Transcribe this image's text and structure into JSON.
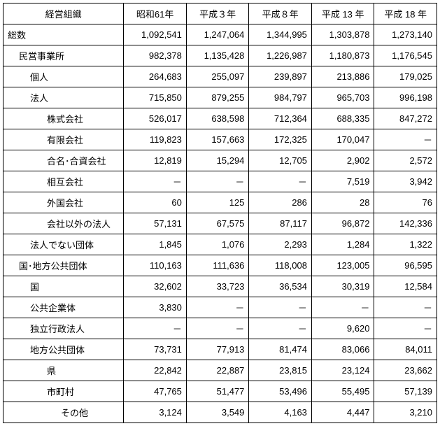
{
  "header": {
    "row_label": "経営組織",
    "columns": [
      "昭和61年",
      "平成３年",
      "平成８年",
      "平成 13 年",
      "平成 18 年"
    ]
  },
  "rows": [
    {
      "label": "総数",
      "indent": 0,
      "values": [
        "1,092,541",
        "1,247,064",
        "1,344,995",
        "1,303,878",
        "1,273,140"
      ]
    },
    {
      "label": "民営事業所",
      "indent": 1,
      "values": [
        "982,378",
        "1,135,428",
        "1,226,987",
        "1,180,873",
        "1,176,545"
      ]
    },
    {
      "label": "個人",
      "indent": 2,
      "values": [
        "264,683",
        "255,097",
        "239,897",
        "213,886",
        "179,025"
      ]
    },
    {
      "label": "法人",
      "indent": 2,
      "values": [
        "715,850",
        "879,255",
        "984,797",
        "965,703",
        "996,198"
      ]
    },
    {
      "label": "株式会社",
      "indent": 3,
      "values": [
        "526,017",
        "638,598",
        "712,364",
        "688,335",
        "847,272"
      ]
    },
    {
      "label": "有限会社",
      "indent": 3,
      "values": [
        "119,823",
        "157,663",
        "172,325",
        "170,047",
        "－"
      ]
    },
    {
      "label": "合名･合資会社",
      "indent": 3,
      "values": [
        "12,819",
        "15,294",
        "12,705",
        "2,902",
        "2,572"
      ]
    },
    {
      "label": "相互会社",
      "indent": 3,
      "values": [
        "－",
        "－",
        "－",
        "7,519",
        "3,942"
      ]
    },
    {
      "label": "外国会社",
      "indent": 3,
      "values": [
        "60",
        "125",
        "286",
        "28",
        "76"
      ]
    },
    {
      "label": "会社以外の法人",
      "indent": 3,
      "values": [
        "57,131",
        "67,575",
        "87,117",
        "96,872",
        "142,336"
      ]
    },
    {
      "label": "法人でない団体",
      "indent": 2,
      "values": [
        "1,845",
        "1,076",
        "2,293",
        "1,284",
        "1,322"
      ]
    },
    {
      "label": "国･地方公共団体",
      "indent": 1,
      "values": [
        "110,163",
        "111,636",
        "118,008",
        "123,005",
        "96,595"
      ]
    },
    {
      "label": "国",
      "indent": 2,
      "values": [
        "32,602",
        "33,723",
        "36,534",
        "30,319",
        "12,584"
      ]
    },
    {
      "label": "公共企業体",
      "indent": 2,
      "values": [
        "3,830",
        "－",
        "－",
        "－",
        "－"
      ]
    },
    {
      "label": "独立行政法人",
      "indent": 2,
      "values": [
        "－",
        "－",
        "－",
        "9,620",
        "－"
      ]
    },
    {
      "label": "地方公共団体",
      "indent": 2,
      "values": [
        "73,731",
        "77,913",
        "81,474",
        "83,066",
        "84,011"
      ]
    },
    {
      "label": "県",
      "indent": 3,
      "values": [
        "22,842",
        "22,887",
        "23,815",
        "23,124",
        "23,662"
      ]
    },
    {
      "label": "市町村",
      "indent": 3,
      "values": [
        "47,765",
        "51,477",
        "53,496",
        "55,495",
        "57,139"
      ]
    },
    {
      "label": "その他",
      "indent": 4,
      "values": [
        "3,124",
        "3,549",
        "4,163",
        "4,447",
        "3,210"
      ]
    }
  ]
}
